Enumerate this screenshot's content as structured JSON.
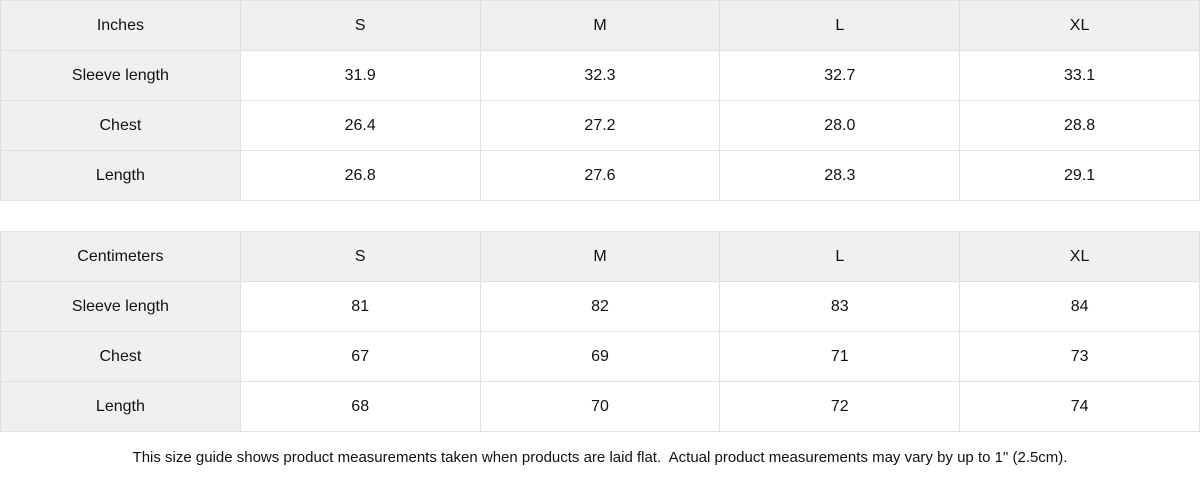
{
  "page": {
    "background_color": "#ffffff",
    "header_fill_color": "#f0f0f0",
    "border_color": "#e0e0e0",
    "text_color": "#111111"
  },
  "tables": [
    {
      "unit": "inches",
      "header": [
        "Inches",
        "S",
        "M",
        "L",
        "XL"
      ],
      "rows": [
        {
          "label": "Sleeve length",
          "values": [
            "31.9",
            "32.3",
            "32.7",
            "33.1"
          ]
        },
        {
          "label": "Chest",
          "values": [
            "26.4",
            "27.2",
            "28.0",
            "28.8"
          ]
        },
        {
          "label": "Length",
          "values": [
            "26.8",
            "27.6",
            "28.3",
            "29.1"
          ]
        }
      ]
    },
    {
      "unit": "centimeters",
      "header": [
        "Centimeters",
        "S",
        "M",
        "L",
        "XL"
      ],
      "rows": [
        {
          "label": "Sleeve length",
          "values": [
            "81",
            "82",
            "83",
            "84"
          ]
        },
        {
          "label": "Chest",
          "values": [
            "67",
            "69",
            "71",
            "73"
          ]
        },
        {
          "label": "Length",
          "values": [
            "68",
            "70",
            "72",
            "74"
          ]
        }
      ]
    }
  ],
  "footer": {
    "note": "This size guide shows product measurements taken when products are laid flat.  Actual product measurements may vary by up to 1\" (2.5cm)."
  }
}
